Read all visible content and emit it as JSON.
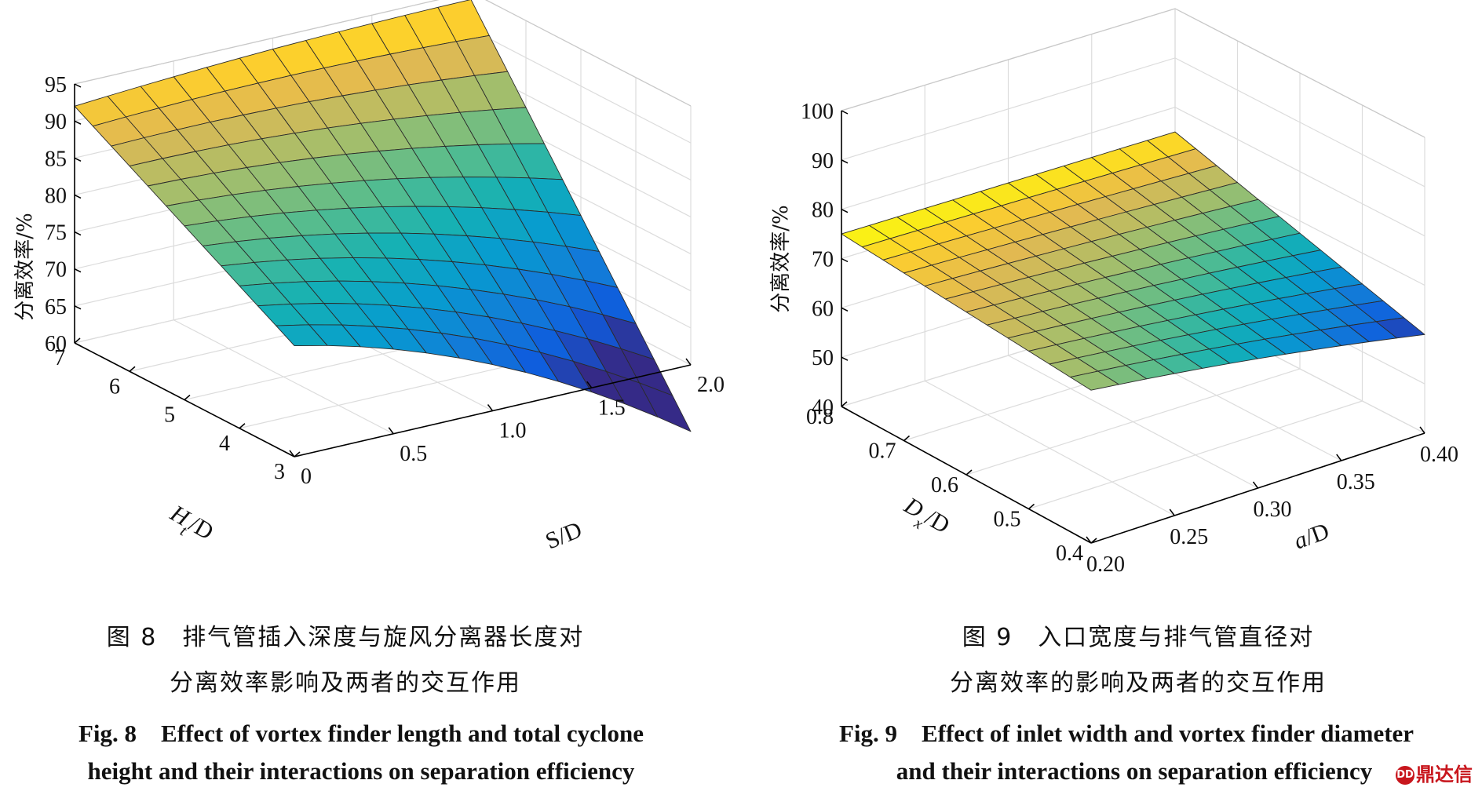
{
  "chart_data": [
    {
      "type": "surface",
      "figure_id": "fig8",
      "x_axis": {
        "label": "S/D",
        "ticks": [
          "0",
          "0.5",
          "1.0",
          "1.5",
          "2.0"
        ],
        "range": [
          0,
          2.0
        ]
      },
      "y_axis": {
        "label_main": "H",
        "label_sub": "t",
        "label_suffix": "/D",
        "ticks": [
          "3",
          "4",
          "5",
          "6",
          "7"
        ],
        "range": [
          3,
          7
        ]
      },
      "z_axis": {
        "label": "分离效率/%",
        "ticks": [
          "60",
          "65",
          "70",
          "75",
          "80",
          "85",
          "90",
          "95"
        ],
        "range": [
          60,
          95
        ]
      },
      "surface_corners": [
        {
          "s": 0,
          "h": 3,
          "eff": 75
        },
        {
          "s": 2.0,
          "h": 3,
          "eff": 60
        },
        {
          "s": 0,
          "h": 7,
          "eff": 92
        },
        {
          "s": 2.0,
          "h": 7,
          "eff": 94
        }
      ],
      "colormap": "parula",
      "grid": true
    },
    {
      "type": "surface",
      "figure_id": "fig9",
      "x_axis": {
        "label_main": "a",
        "label_suffix": "/D",
        "ticks": [
          "0.20",
          "0.25",
          "0.30",
          "0.35",
          "0.40"
        ],
        "range": [
          0.2,
          0.4
        ]
      },
      "y_axis": {
        "label_main": "D",
        "label_sub": "x",
        "label_suffix": "/D",
        "ticks": [
          "0.4",
          "0.5",
          "0.6",
          "0.7",
          "0.8"
        ],
        "range": [
          0.4,
          0.8
        ]
      },
      "z_axis": {
        "label": "分离效率/%",
        "ticks": [
          "40",
          "50",
          "60",
          "70",
          "80",
          "90",
          "100"
        ],
        "range": [
          40,
          100
        ]
      },
      "surface_corners": [
        {
          "a": 0.2,
          "dx": 0.4,
          "eff": 71
        },
        {
          "a": 0.4,
          "dx": 0.4,
          "eff": 60
        },
        {
          "a": 0.2,
          "dx": 0.8,
          "eff": 75
        },
        {
          "a": 0.4,
          "dx": 0.8,
          "eff": 75
        }
      ],
      "colormap": "parula",
      "grid": true
    }
  ],
  "captions": {
    "fig8_cn_1": "图 8　排气管插入深度与旋风分离器长度对",
    "fig8_cn_2": "分离效率影响及两者的交互作用",
    "fig8_en_1": "Fig. 8　Effect of vortex finder length and total cyclone",
    "fig8_en_2": "height and their interactions on separation efficiency",
    "fig9_cn_1": "图 9　入口宽度与排气管直径对",
    "fig9_cn_2": "分离效率的影响及两者的交互作用",
    "fig9_en_1": "Fig. 9　Effect of inlet width and vortex finder diameter",
    "fig9_en_2": "and their interactions on separation efficiency"
  },
  "watermark": {
    "text": "鼎达信",
    "badge": "DD"
  }
}
